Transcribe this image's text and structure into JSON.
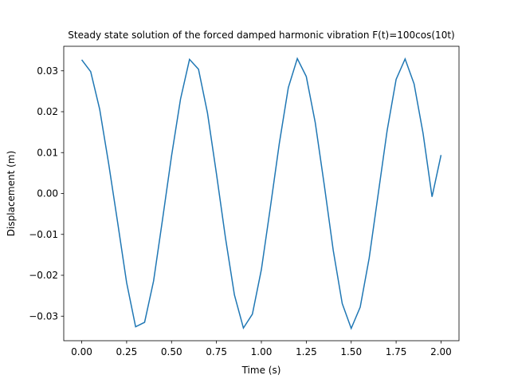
{
  "chart_data": {
    "type": "line",
    "title": "Steady state solution of the forced damped harmonic vibration F(t)=100cos(10t)",
    "xlabel": "Time (s)",
    "ylabel": "Displacement (m)",
    "xlim": [
      -0.1,
      2.1
    ],
    "ylim": [
      -0.036,
      0.036
    ],
    "xticks": [
      0.0,
      0.25,
      0.5,
      0.75,
      1.0,
      1.25,
      1.5,
      1.75,
      2.0
    ],
    "xtick_labels": [
      "0.00",
      "0.25",
      "0.50",
      "0.75",
      "1.00",
      "1.25",
      "1.50",
      "1.75",
      "2.00"
    ],
    "yticks": [
      -0.03,
      -0.02,
      -0.01,
      0.0,
      0.01,
      0.02,
      0.03
    ],
    "ytick_labels": [
      "−0.03",
      "−0.02",
      "−0.01",
      "0.00",
      "0.01",
      "0.02",
      "0.03"
    ],
    "grid": false,
    "legend": "none",
    "series": [
      {
        "color": "#1f77b4",
        "x": [
          0.0,
          0.05,
          0.1,
          0.15,
          0.2,
          0.25,
          0.3,
          0.35,
          0.4,
          0.45,
          0.5,
          0.55,
          0.6,
          0.65,
          0.7,
          0.75,
          0.8,
          0.85,
          0.9,
          0.95,
          1.0,
          1.05,
          1.1,
          1.15,
          1.2,
          1.25,
          1.3,
          1.35,
          1.4,
          1.45,
          1.5,
          1.55,
          1.6,
          1.65,
          1.7,
          1.75,
          1.8,
          1.85,
          1.9,
          1.95,
          2.0
        ],
        "y": [
          0.0327,
          0.0298,
          0.0206,
          0.0073,
          -0.0071,
          -0.0218,
          -0.0326,
          -0.0315,
          -0.0214,
          -0.0063,
          0.0092,
          0.0231,
          0.0328,
          0.0304,
          0.0197,
          0.0048,
          -0.0108,
          -0.0248,
          -0.0329,
          -0.0295,
          -0.0186,
          -0.0034,
          0.0123,
          0.0259,
          0.033,
          0.0286,
          0.0173,
          0.0021,
          -0.0139,
          -0.0269,
          -0.033,
          -0.0278,
          -0.0158,
          -0.0002,
          0.0154,
          0.0279,
          0.0329,
          0.0268,
          0.0147,
          -0.0008,
          0.0094
        ]
      }
    ]
  }
}
